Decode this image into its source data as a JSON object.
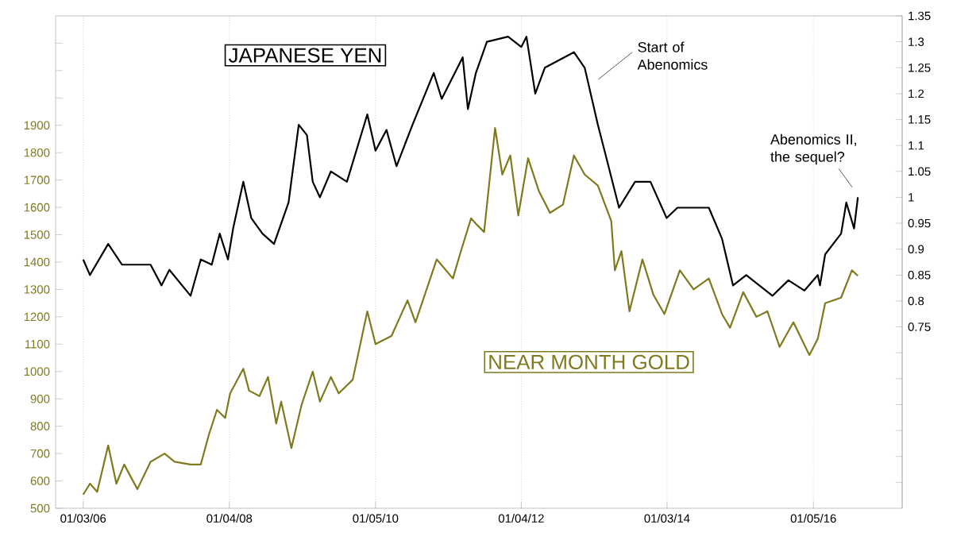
{
  "chart_data": {
    "type": "line",
    "xlim": [
      "2005-08-18",
      "2017-03-25"
    ],
    "xticks": [
      {
        "value": "2006-01-03",
        "label": "01/03/06"
      },
      {
        "value": "2008-01-04",
        "label": "01/04/08"
      },
      {
        "value": "2010-01-05",
        "label": "01/05/10"
      },
      {
        "value": "2012-01-04",
        "label": "01/04/12"
      },
      {
        "value": "2014-01-03",
        "label": "01/03/14"
      },
      {
        "value": "2016-01-05",
        "label": "01/05/16"
      }
    ],
    "ylim": [
      500,
      2300
    ],
    "yticks": [
      500,
      600,
      700,
      800,
      900,
      1000,
      1100,
      1200,
      1300,
      1400,
      1500,
      1600,
      1700,
      1800,
      1900,
      {
        "value": 2000,
        "label": null
      },
      {
        "value": 2100,
        "label": null
      },
      {
        "value": 2200,
        "label": null
      }
    ],
    "y2lim": [
      0.4,
      1.35
    ],
    "y2ticks": [
      {
        "value": 0.45,
        "label": null
      },
      {
        "value": 0.5,
        "label": null
      },
      {
        "value": 0.55,
        "label": null
      },
      {
        "value": 0.6,
        "label": null
      },
      {
        "value": 0.65,
        "label": null
      },
      {
        "value": 0.7,
        "label": null
      },
      0.75,
      0.8,
      0.85,
      0.9,
      0.95,
      1,
      1.05,
      1.1,
      1.15,
      1.2,
      1.25,
      1.3,
      1.35
    ],
    "grid": "x",
    "legend": false,
    "marker": "none",
    "line_style": "solid",
    "annotations": [
      "Start of Abenomics",
      "Abenomics II, the sequel?"
    ],
    "series": [
      {
        "name": "JAPANESE YEN",
        "color": "#000000",
        "axis": "y2",
        "x": [
          "2006-01-03",
          "2006-02-06",
          "2006-05-08",
          "2006-07-16",
          "2006-12-06",
          "2007-01-30",
          "2007-03-10",
          "2007-06-24",
          "2007-08-14",
          "2007-10-08",
          "2007-11-17",
          "2007-12-28",
          "2008-01-23",
          "2008-03-14",
          "2008-04-23",
          "2008-06-18",
          "2008-08-15",
          "2008-10-27",
          "2008-12-17",
          "2009-01-27",
          "2009-02-25",
          "2009-04-02",
          "2009-05-27",
          "2009-08-15",
          "2009-11-25",
          "2010-01-05",
          "2010-03-01",
          "2010-04-20",
          "2010-07-09",
          "2010-10-23",
          "2010-12-02",
          "2011-03-17",
          "2011-04-12",
          "2011-05-22",
          "2011-07-16",
          "2011-10-30",
          "2012-01-04",
          "2012-01-30",
          "2012-03-14",
          "2012-05-01",
          "2012-09-24",
          "2012-11-17",
          "2013-01-22",
          "2013-03-03",
          "2013-05-08",
          "2013-07-27",
          "2013-10-12",
          "2014-01-01",
          "2014-02-24",
          "2014-07-31",
          "2014-10-05",
          "2014-11-29",
          "2015-02-03",
          "2015-06-14",
          "2015-09-02",
          "2015-11-21",
          "2016-01-27",
          "2016-02-07",
          "2016-03-04",
          "2016-05-23",
          "2016-06-18",
          "2016-07-27",
          "2016-08-15"
        ],
        "values": [
          0.88,
          0.85,
          0.91,
          0.87,
          0.87,
          0.83,
          0.86,
          0.81,
          0.88,
          0.87,
          0.93,
          0.88,
          0.94,
          1.03,
          0.96,
          0.93,
          0.91,
          0.99,
          1.14,
          1.12,
          1.03,
          1.0,
          1.05,
          1.03,
          1.16,
          1.09,
          1.13,
          1.06,
          1.14,
          1.24,
          1.19,
          1.27,
          1.17,
          1.24,
          1.3,
          1.31,
          1.29,
          1.31,
          1.2,
          1.25,
          1.28,
          1.25,
          1.14,
          1.08,
          0.98,
          1.03,
          1.03,
          0.96,
          0.98,
          0.98,
          0.92,
          0.83,
          0.85,
          0.81,
          0.84,
          0.82,
          0.85,
          0.83,
          0.89,
          0.93,
          0.99,
          0.94,
          1.0
        ]
      },
      {
        "name": "NEAR MONTH GOLD",
        "color": "#7f7a1e",
        "x": [
          "2006-01-03",
          "2006-02-06",
          "2006-03-14",
          "2006-05-08",
          "2006-06-18",
          "2006-07-27",
          "2006-10-01",
          "2006-12-06",
          "2007-02-14",
          "2007-04-05",
          "2007-06-24",
          "2007-08-14",
          "2007-09-24",
          "2007-11-03",
          "2007-12-14",
          "2008-01-08",
          "2008-03-14",
          "2008-04-12",
          "2008-06-03",
          "2008-07-16",
          "2008-08-26",
          "2008-09-20",
          "2008-11-10",
          "2009-01-01",
          "2009-02-25",
          "2009-04-02",
          "2009-05-27",
          "2009-07-05",
          "2009-09-13",
          "2009-11-25",
          "2010-01-05",
          "2010-03-26",
          "2010-06-14",
          "2010-07-24",
          "2010-11-07",
          "2011-01-27",
          "2011-03-08",
          "2011-04-28",
          "2011-05-22",
          "2011-07-02",
          "2011-08-26",
          "2011-10-01",
          "2011-11-10",
          "2011-12-20",
          "2012-02-07",
          "2012-04-01",
          "2012-05-27",
          "2012-07-31",
          "2012-09-24",
          "2012-11-17",
          "2013-01-22",
          "2013-03-30",
          "2013-04-17",
          "2013-05-20",
          "2013-06-29",
          "2013-09-02",
          "2013-10-27",
          "2013-12-21",
          "2014-03-08",
          "2014-05-16",
          "2014-07-31",
          "2014-10-05",
          "2014-11-14",
          "2015-01-19",
          "2015-03-26",
          "2015-05-20",
          "2015-07-20",
          "2015-09-27",
          "2015-12-16",
          "2016-01-27",
          "2016-03-04",
          "2016-05-23",
          "2016-07-16",
          "2016-08-15"
        ],
        "values": [
          550,
          590,
          560,
          730,
          590,
          660,
          570,
          670,
          700,
          670,
          660,
          660,
          770,
          860,
          830,
          920,
          1010,
          930,
          910,
          980,
          810,
          890,
          720,
          880,
          1000,
          890,
          980,
          920,
          970,
          1220,
          1100,
          1130,
          1260,
          1180,
          1410,
          1340,
          1440,
          1560,
          1540,
          1510,
          1890,
          1720,
          1790,
          1570,
          1780,
          1660,
          1580,
          1610,
          1790,
          1720,
          1680,
          1550,
          1370,
          1440,
          1220,
          1410,
          1280,
          1210,
          1370,
          1300,
          1340,
          1210,
          1160,
          1290,
          1200,
          1220,
          1090,
          1180,
          1060,
          1120,
          1250,
          1270,
          1370,
          1350
        ]
      }
    ]
  }
}
